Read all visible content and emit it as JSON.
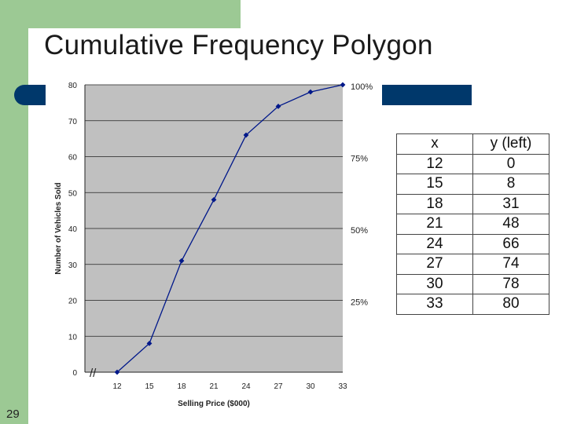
{
  "slide": {
    "title": "Cumulative Frequency Polygon",
    "slide_number": "29"
  },
  "colors": {
    "green": "#9cc994",
    "navy": "#00386b",
    "plot_bg": "#c0c0c0",
    "series": "#00188a"
  },
  "chart_data": {
    "type": "line",
    "xlabel": "Selling Price ($000)",
    "ylabel": "Number of Vehicles Sold",
    "x": [
      12,
      15,
      18,
      21,
      24,
      27,
      30,
      33
    ],
    "series": [
      {
        "values": [
          0,
          8,
          31,
          48,
          66,
          74,
          78,
          80
        ]
      }
    ],
    "x_ticks": [
      "12",
      "15",
      "18",
      "21",
      "24",
      "27",
      "30",
      "33"
    ],
    "y_ticks": [
      "0",
      "10",
      "20",
      "30",
      "40",
      "50",
      "60",
      "70",
      "80"
    ],
    "ylim": [
      0,
      80
    ],
    "xlim": [
      9,
      33
    ],
    "grid": true,
    "right_axis_labels": [
      {
        "value": 20,
        "label": "25%"
      },
      {
        "value": 40,
        "label": "50%"
      },
      {
        "value": 60,
        "label": "75%"
      },
      {
        "value": 80,
        "label": "100%"
      }
    ],
    "axis_break": "//"
  },
  "table": {
    "headers": [
      "x",
      "y (left)"
    ],
    "rows": [
      [
        "12",
        "0"
      ],
      [
        "15",
        "8"
      ],
      [
        "18",
        "31"
      ],
      [
        "21",
        "48"
      ],
      [
        "24",
        "66"
      ],
      [
        "27",
        "74"
      ],
      [
        "30",
        "78"
      ],
      [
        "33",
        "80"
      ]
    ]
  }
}
